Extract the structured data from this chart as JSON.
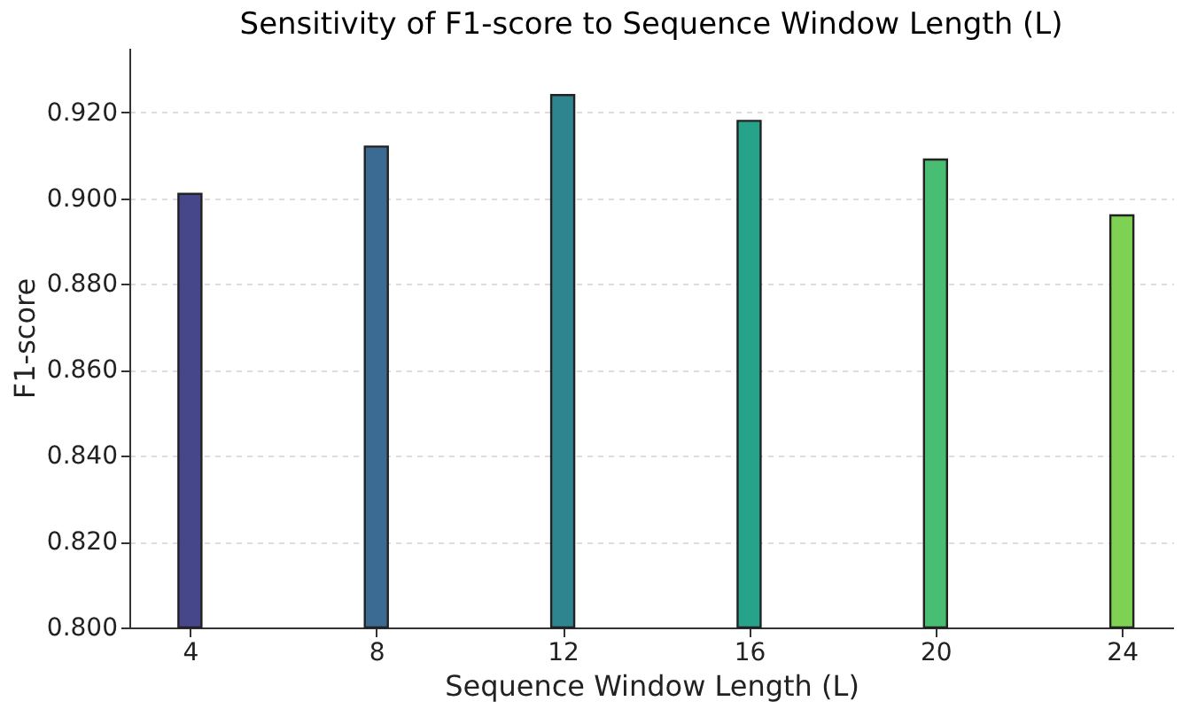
{
  "chart_data": {
    "type": "bar",
    "title": "Sensitivity of F1-score to Sequence Window Length (L)",
    "xlabel": "Sequence Window Length (L)",
    "ylabel": "F1-score",
    "x": [
      4,
      8,
      12,
      16,
      20,
      24
    ],
    "values": [
      0.901,
      0.912,
      0.924,
      0.918,
      0.909,
      0.896
    ],
    "colors": [
      "#46468a",
      "#3b6a92",
      "#2e8590",
      "#26a38a",
      "#48be72",
      "#7fd154"
    ],
    "xlim": [
      2.7,
      25.1
    ],
    "xticks": [
      4,
      8,
      12,
      16,
      20,
      24
    ],
    "ylim": [
      0.8,
      0.935
    ],
    "yticks": [
      {
        "value": 0.8,
        "label": "0.800"
      },
      {
        "value": 0.82,
        "label": "0.820"
      },
      {
        "value": 0.84,
        "label": "0.840"
      },
      {
        "value": 0.86,
        "label": "0.860"
      },
      {
        "value": 0.88,
        "label": "0.880"
      },
      {
        "value": 0.9,
        "label": "0.900"
      },
      {
        "value": 0.92,
        "label": "0.920"
      }
    ],
    "grid": "y",
    "legend": false
  }
}
